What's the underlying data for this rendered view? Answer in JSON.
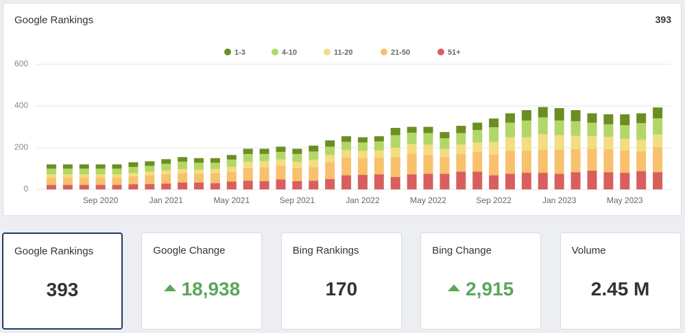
{
  "panel": {
    "title": "Google Rankings",
    "total": "393",
    "chart": {
      "type": "bar",
      "stacked": true,
      "grid": true,
      "legend": "top",
      "categories": [
        null,
        null,
        null,
        "Sep 2020",
        null,
        null,
        null,
        "Jan 2021",
        null,
        null,
        null,
        "May 2021",
        null,
        null,
        null,
        "Sep 2021",
        null,
        null,
        null,
        "Jan 2022",
        null,
        null,
        null,
        "May 2022",
        null,
        null,
        null,
        "Sep 2022",
        null,
        null,
        null,
        "Jan 2023",
        null,
        null,
        null,
        "May 2023",
        null,
        null
      ],
      "ylim": [
        0,
        600
      ],
      "yticks": [
        0,
        200,
        400,
        600
      ],
      "series": [
        {
          "name": "51+",
          "color": "#d95f5f",
          "values": [
            22,
            22,
            22,
            22,
            22,
            25,
            26,
            28,
            33,
            33,
            30,
            38,
            42,
            40,
            48,
            40,
            42,
            50,
            68,
            70,
            72,
            60,
            72,
            75,
            75,
            85,
            85,
            68,
            75,
            80,
            80,
            75,
            82,
            90,
            82,
            80,
            88,
            83
          ]
        },
        {
          "name": "21-50",
          "color": "#f8c16b",
          "values": [
            35,
            35,
            35,
            35,
            35,
            38,
            42,
            45,
            45,
            42,
            48,
            48,
            60,
            65,
            65,
            62,
            65,
            80,
            85,
            80,
            80,
            95,
            100,
            90,
            80,
            85,
            95,
            100,
            110,
            105,
            110,
            115,
            110,
            105,
            110,
            108,
            95,
            120
          ]
        },
        {
          "name": "11-20",
          "color": "#f3dc82",
          "values": [
            15,
            15,
            15,
            15,
            15,
            15,
            17,
            18,
            20,
            20,
            20,
            22,
            30,
            30,
            30,
            30,
            35,
            35,
            35,
            35,
            35,
            45,
            45,
            50,
            40,
            45,
            45,
            60,
            65,
            65,
            75,
            70,
            65,
            60,
            60,
            55,
            55,
            60
          ]
        },
        {
          "name": "4-10",
          "color": "#b3d767",
          "values": [
            28,
            28,
            28,
            28,
            28,
            30,
            28,
            32,
            35,
            33,
            30,
            35,
            38,
            35,
            37,
            38,
            40,
            40,
            40,
            40,
            43,
            60,
            55,
            55,
            50,
            55,
            60,
            70,
            70,
            80,
            80,
            70,
            70,
            65,
            60,
            65,
            80,
            78
          ]
        },
        {
          "name": "1-3",
          "color": "#6b8e23",
          "values": [
            20,
            20,
            20,
            20,
            20,
            22,
            22,
            22,
            22,
            22,
            22,
            22,
            25,
            25,
            25,
            25,
            28,
            30,
            27,
            25,
            25,
            35,
            28,
            30,
            30,
            35,
            35,
            42,
            45,
            50,
            50,
            60,
            53,
            45,
            48,
            52,
            47,
            52
          ]
        }
      ]
    }
  },
  "cards": [
    {
      "label": "Google Rankings",
      "value": "393",
      "selected": true
    },
    {
      "label": "Google Change",
      "value": "18,938",
      "trend": "up"
    },
    {
      "label": "Bing Rankings",
      "value": "170"
    },
    {
      "label": "Bing Change",
      "value": "2,915",
      "trend": "up"
    },
    {
      "label": "Volume",
      "value": "2.45 M"
    }
  ]
}
